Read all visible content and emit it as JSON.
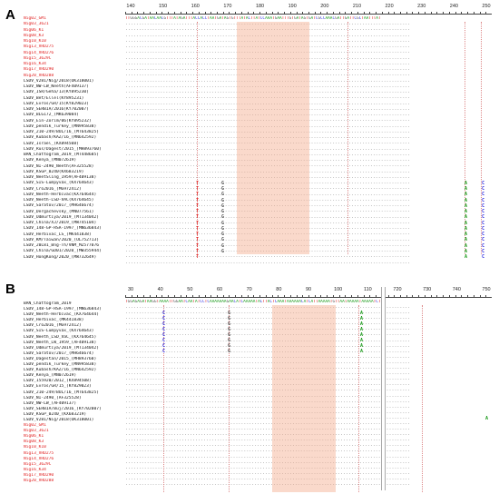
{
  "panels": [
    {
      "label": "A",
      "ruler": [
        140,
        150,
        160,
        170,
        180,
        190,
        200,
        210,
        220,
        230,
        240,
        250
      ],
      "consensus": "TTGGGACGATAACAACGTTTATAGATTTACCACCTAATGATAGTGTTTATACTTATCCAAATGAATTTGTGATAGTGATCGCCAAACGATTGATTCGCTAATTTAT",
      "names": [
        {
          "text": "Nig02_GM1",
          "color": "red"
        },
        {
          "text": "Nig03_3621",
          "color": "red"
        },
        {
          "text": "Nig06_K1",
          "color": "red"
        },
        {
          "text": "Nig08_K3",
          "color": "red"
        },
        {
          "text": "Nig10_K10",
          "color": "red"
        },
        {
          "text": "Nig13_VRD275",
          "color": "red"
        },
        {
          "text": "Nig14_VRD276",
          "color": "red"
        },
        {
          "text": "Nig15_3629C",
          "color": "red"
        },
        {
          "text": "Nig16_K34",
          "color": "red"
        },
        {
          "text": "Nig17_VRD290",
          "color": "red"
        },
        {
          "text": "Nig20_VRD288",
          "color": "red"
        },
        {
          "text": "LSDV_V281/Nig/2018(OK318001)",
          "color": "black"
        },
        {
          "text": "LSDV_NW-LW_Neeth(AF409137)",
          "color": "black"
        },
        {
          "text": "LSDV_ISR/Geha/13(KY895230)",
          "color": "black"
        },
        {
          "text": "LSDV_Bet/Ellel(KY895231)",
          "color": "black"
        },
        {
          "text": "LSDV_Evros/GR/15(KY829023)",
          "color": "black"
        },
        {
          "text": "LSDV_SERBIA/2016(KY702007)",
          "color": "black"
        },
        {
          "text": "LSDV_BLG172_(MK639084)",
          "color": "black"
        },
        {
          "text": "LSDV_Ein-Zorim/06(KY895232)",
          "color": "black"
        },
        {
          "text": "LSDV_pendik_Turkey_(MN995838)",
          "color": "black"
        },
        {
          "text": "LSDV_210-249/BUL/16_(MT643825)",
          "color": "black"
        },
        {
          "text": "LSDV_Kubash/KAZ/16_(MN642592)",
          "color": "black"
        },
        {
          "text": "LSDV_Israel_(KX894508)",
          "color": "black"
        },
        {
          "text": "LSDV_Rus/Dagest/2015_(MH893760)",
          "color": "black"
        },
        {
          "text": "BAN_Chattogram_2019_(MT448685)",
          "color": "black"
        },
        {
          "text": "LSDV_Kenya_(MN072619)",
          "color": "black"
        },
        {
          "text": "LSDV_NI-2490_Neeth(AF325528)",
          "color": "black"
        },
        {
          "text": "LSDV_KSGP_0240(KX683219)",
          "color": "black"
        },
        {
          "text": "LSDV_NeetSling_1959(AF409138)",
          "color": "black"
        },
        {
          "text": "LSDV_SIS-Lumpyvax_(KX764643)",
          "color": "black"
        },
        {
          "text": "LSDV_Cro2016_(MG972412)",
          "color": "black"
        },
        {
          "text": "LSDV_Neeth-Herbivac(KX764644)",
          "color": "black"
        },
        {
          "text": "LSDV_Neeth-LSD-VAC(KX764645)",
          "color": "black"
        },
        {
          "text": "LSDV_Saratov/2017_(MH646674)",
          "color": "black"
        },
        {
          "text": "LSDV_Dergachevsky_(MN077561)",
          "color": "black"
        },
        {
          "text": "LSDV_Udmurtiya/2019_(MT134042)",
          "color": "black"
        },
        {
          "text": "LSDV_China/XJ/2019_(MW745104)",
          "color": "black"
        },
        {
          "text": "LSDV_148-GP-RSA-1997_(MN636843)",
          "color": "black"
        },
        {
          "text": "LSDV_Herbivac_LS_(MK441838)",
          "color": "black"
        },
        {
          "text": "LSDV_KM/Taiwan/2020_(OL752713)",
          "color": "black"
        },
        {
          "text": "LSDV_20L81_Bng-Th/VNM_MZ577076",
          "color": "black"
        },
        {
          "text": "LSDV_China/GD01/2020_(MW355944)",
          "color": "black"
        },
        {
          "text": "LSDV_HongKong/2020_(MW732649)",
          "color": "black"
        }
      ]
    },
    {
      "label": "B",
      "ruler": [
        30,
        40,
        50,
        60,
        70,
        80,
        90,
        100,
        110,
        720,
        730,
        740,
        750
      ],
      "consensus": "TGGAGAGATAAGGTAAAATTGGAATCAATATCCTCAAAAAAAGAACATCAAAAATACTTACTCAAATAAAAAACATCATTAAAAATGTTAATAAAAATAAAAATCT",
      "names": [
        {
          "text": "BAN_Chattogram_2019",
          "color": "black"
        },
        {
          "text": "LSDV_148-GP-RSA-1997_(MN636843)",
          "color": "black"
        },
        {
          "text": "LSDV_Neeth-Herbivac_(KX764644)",
          "color": "black"
        },
        {
          "text": "LSDV_Herbivac_(MK441838)",
          "color": "black"
        },
        {
          "text": "LSDV_Cro2016_(MG972412)",
          "color": "black"
        },
        {
          "text": "LSDV_SIS-Lumpyvax_(KX764643)",
          "color": "black"
        },
        {
          "text": "LSDV_Neeth_LSD_VaC_(KX764645)",
          "color": "black"
        },
        {
          "text": "LSDV_Neeth_LW_1959_(AF409138)",
          "color": "black"
        },
        {
          "text": "LSDV_Udmurtiya/2019_(MT134042)",
          "color": "black"
        },
        {
          "text": "LSDV_Saratov/2017_(MH646674)",
          "color": "black"
        },
        {
          "text": "LSDV_Dagestan/2015_(MH893760)",
          "color": "black"
        },
        {
          "text": "LSDV_pendik_Turkey_(MN995838)",
          "color": "black"
        },
        {
          "text": "LSDV_Kubash/KAZ/16_(MN642592)",
          "color": "black"
        },
        {
          "text": "LSDV_Kenya_(MN072619)",
          "color": "black"
        },
        {
          "text": "LSDV_155920/2012_(KX894508)",
          "color": "black"
        },
        {
          "text": "LSDV_Evros/GR/15_(KY829023)",
          "color": "black"
        },
        {
          "text": "LSDV_210-249/BUL/16_(MT643825)",
          "color": "black"
        },
        {
          "text": "LSDV_NI-2490_(AF325528)",
          "color": "black"
        },
        {
          "text": "LSDV_NW-LW_(AF409137)",
          "color": "black"
        },
        {
          "text": "LSDV_SERBIA/Buj/2016_(KY702007)",
          "color": "black"
        },
        {
          "text": "LSDV_KSGP_0240_(KX683219)",
          "color": "black"
        },
        {
          "text": "LSDV_V281/Nig/2018(OK318001)",
          "color": "black"
        },
        {
          "text": "Nig02_GM1",
          "color": "red"
        },
        {
          "text": "Nig03_3621",
          "color": "red"
        },
        {
          "text": "Nig06_K1",
          "color": "red"
        },
        {
          "text": "Nig08_K3",
          "color": "red"
        },
        {
          "text": "Nig10_K10",
          "color": "red"
        },
        {
          "text": "Nig13_VRD275",
          "color": "red"
        },
        {
          "text": "Nig14_VRD276",
          "color": "red"
        },
        {
          "text": "Nig15_3629C",
          "color": "red"
        },
        {
          "text": "Nig16_K34",
          "color": "red"
        },
        {
          "text": "Nig17_VRD290",
          "color": "red"
        },
        {
          "text": "Nig20_VRD288",
          "color": "red"
        }
      ]
    }
  ]
}
